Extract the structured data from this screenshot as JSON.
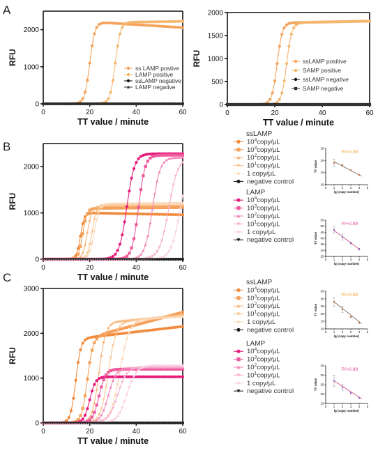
{
  "figure": {
    "panels": [
      {
        "id": "A",
        "label": "A"
      },
      {
        "id": "B",
        "label": "B"
      },
      {
        "id": "C",
        "label": "C"
      }
    ]
  },
  "chart_data": [
    {
      "id": "A-left",
      "type": "line",
      "xlabel": "TT value / minute",
      "ylabel": "RFU",
      "xlim": [
        0,
        60
      ],
      "ylim": [
        0,
        2500
      ],
      "xticks": [
        0,
        20,
        40,
        60
      ],
      "yticks": [
        0,
        1000,
        2000
      ],
      "legend_position": "right",
      "series": [
        {
          "name": "ss LAMP postive",
          "color": "#f4a259",
          "marker": "circle",
          "plateau": 2200,
          "ct": 20,
          "k": 0.9,
          "drift": -4
        },
        {
          "name": "LAMP positive",
          "color": "#f5b66d",
          "marker": "circle",
          "plateau": 2200,
          "ct": 31,
          "k": 0.9,
          "drift": 1
        },
        {
          "name": "ssLAMP negative",
          "color": "#111111",
          "marker": "circle",
          "plateau": 0,
          "ct": 100,
          "k": 1,
          "drift": 0
        },
        {
          "name": "LAMP negative",
          "color": "#333333",
          "marker": "triangle",
          "plateau": 0,
          "ct": 100,
          "k": 1,
          "drift": 0
        }
      ]
    },
    {
      "id": "A-right",
      "type": "line",
      "xlabel": "TT value / minute",
      "ylabel": "RFU",
      "xlim": [
        0,
        60
      ],
      "ylim": [
        0,
        2000
      ],
      "xticks": [
        0,
        20,
        40,
        60
      ],
      "yticks": [
        0,
        500,
        1000,
        1500,
        2000
      ],
      "legend_position": "right",
      "series": [
        {
          "name": "ssLAMP positive",
          "color": "#f4a259",
          "marker": "circle",
          "plateau": 1780,
          "ct": 21,
          "k": 0.9,
          "drift": 1
        },
        {
          "name": "SAMP positive",
          "color": "#f5b66d",
          "marker": "circle",
          "plateau": 1780,
          "ct": 25,
          "k": 0.9,
          "drift": 1
        },
        {
          "name": "ssLAMP negative",
          "color": "#111111",
          "marker": "circle",
          "plateau": 0,
          "ct": 100,
          "k": 1,
          "drift": 0
        },
        {
          "name": "SAMP negative",
          "color": "#333333",
          "marker": "square",
          "plateau": 0,
          "ct": 100,
          "k": 1,
          "drift": 0
        }
      ]
    },
    {
      "id": "B-main",
      "type": "line",
      "xlabel": "TT value / minute",
      "ylabel": "RFU",
      "xlim": [
        0,
        60
      ],
      "ylim": [
        0,
        2500
      ],
      "xticks": [
        0,
        20,
        40,
        60
      ],
      "yticks": [
        0,
        1000,
        2000
      ],
      "series": [
        {
          "name": "ssLAMP 10^4copy/μL",
          "color": "#f08a3c",
          "marker": "circle",
          "plateau": 1000,
          "ct": 16,
          "k": 1.2,
          "drift": -1
        },
        {
          "name": "ssLAMP 10^3copy/μL",
          "color": "#f5a05a",
          "marker": "square",
          "plateau": 1100,
          "ct": 17,
          "k": 1.1,
          "drift": 0.5
        },
        {
          "name": "ssLAMP 10^2copy/μL",
          "color": "#f7b377",
          "marker": "triangle",
          "plateau": 1150,
          "ct": 19,
          "k": 1.0,
          "drift": 0.5
        },
        {
          "name": "ssLAMP 10^1copy/μL",
          "color": "#f9c694",
          "marker": "tri-down",
          "plateau": 1180,
          "ct": 21,
          "k": 1.0,
          "drift": 0.5
        },
        {
          "name": "ssLAMP 1 copy/μL",
          "color": "#fbd9b8",
          "marker": "diamond",
          "plateau": 1200,
          "ct": 22,
          "k": 0.9,
          "drift": 0.5
        },
        {
          "name": "ssLAMP negative control",
          "color": "#222222",
          "marker": "circle",
          "plateau": 0,
          "ct": 100,
          "k": 1,
          "drift": 0
        },
        {
          "name": "LAMP 10^4copy/μL",
          "color": "#e6197a",
          "marker": "circle",
          "plateau": 2280,
          "ct": 36,
          "k": 0.6,
          "drift": 0
        },
        {
          "name": "LAMP 10^3copy/μL",
          "color": "#ee5a9d",
          "marker": "square",
          "plateau": 2250,
          "ct": 41,
          "k": 0.7,
          "drift": 0
        },
        {
          "name": "LAMP 10^2copy/μL",
          "color": "#f285b6",
          "marker": "triangle",
          "plateau": 2200,
          "ct": 47,
          "k": 0.6,
          "drift": 0
        },
        {
          "name": "LAMP 10^1copy/μL",
          "color": "#f6b0cf",
          "marker": "tri-down",
          "plateau": 2200,
          "ct": 54,
          "k": 0.5,
          "drift": 0
        },
        {
          "name": "LAMP 1 copy/μL",
          "color": "#fad0e2",
          "marker": "diamond",
          "plateau": 2200,
          "ct": 59,
          "k": 0.5,
          "drift": 0
        },
        {
          "name": "LAMP negative control",
          "color": "#222222",
          "marker": "tri-down",
          "plateau": 0,
          "ct": 100,
          "k": 1,
          "drift": 0
        }
      ]
    },
    {
      "id": "B-inset-ssLAMP",
      "type": "line",
      "xlabel": "lg (copy number)",
      "ylabel": "TT value",
      "annotation": "R²=0.99",
      "annotation_color": "#f0a030",
      "xlim": [
        0,
        5
      ],
      "ylim": [
        10,
        25
      ],
      "xticks": [
        0,
        1,
        2,
        3,
        4,
        5
      ],
      "yticks": [
        10,
        15,
        20,
        25
      ],
      "points": [
        {
          "x": 1,
          "y": 19,
          "err": 1.5
        },
        {
          "x": 2,
          "y": 18,
          "err": 0.4
        },
        {
          "x": 3,
          "y": 16,
          "err": 0
        },
        {
          "x": 4,
          "y": 14,
          "err": 0
        }
      ],
      "point_color": "#c06030",
      "fit": {
        "x0": 1,
        "y0": 19.5,
        "x1": 4.3,
        "y1": 13.5,
        "color": "#8a7060"
      }
    },
    {
      "id": "B-inset-LAMP",
      "type": "line",
      "xlabel": "lg (copy number)",
      "ylabel": "TT value",
      "annotation": "R²=0.99",
      "annotation_color": "#e0409a",
      "xlim": [
        0,
        5
      ],
      "ylim": [
        25,
        55
      ],
      "xticks": [
        0,
        1,
        2,
        3,
        4,
        5
      ],
      "yticks": [
        25,
        30,
        35,
        40,
        45,
        50,
        55
      ],
      "points": [
        {
          "x": 1,
          "y": 47,
          "err": 2.5
        },
        {
          "x": 2,
          "y": 41,
          "err": 2.5
        },
        {
          "x": 3,
          "y": 36,
          "err": 1
        },
        {
          "x": 4,
          "y": 31,
          "err": 0.8
        }
      ],
      "point_color": "#9050c0",
      "fit": {
        "x0": 1,
        "y0": 46.5,
        "x1": 4,
        "y1": 31,
        "color": "#d05090"
      }
    },
    {
      "id": "C-main",
      "type": "line",
      "xlabel": "TT value / minute",
      "ylabel": "RFU",
      "xlim": [
        0,
        60
      ],
      "ylim": [
        0,
        3000
      ],
      "xticks": [
        0,
        20,
        40,
        60
      ],
      "yticks": [
        0,
        1000,
        2000,
        3000
      ],
      "series": [
        {
          "name": "ssLAMP 10^4copy/μL",
          "color": "#f08a3c",
          "marker": "circle",
          "plateau": 1900,
          "ct": 14,
          "k": 0.9,
          "drift": 6
        },
        {
          "name": "ssLAMP 10^3copy/μL",
          "color": "#f5a05a",
          "marker": "square",
          "plateau": 1950,
          "ct": 19,
          "k": 0.8,
          "drift": 14
        },
        {
          "name": "ssLAMP 10^2copy/μL",
          "color": "#f7b377",
          "marker": "triangle",
          "plateau": 2250,
          "ct": 24,
          "k": 0.7,
          "drift": 5
        },
        {
          "name": "ssLAMP 10^1copy/μL",
          "color": "#f9c694",
          "marker": "tri-down",
          "plateau": 2250,
          "ct": 28,
          "k": 0.6,
          "drift": 5
        },
        {
          "name": "ssLAMP 1 copy/μL",
          "color": "#fbd9b8",
          "marker": "diamond",
          "plateau": 2300,
          "ct": 33,
          "k": 0.5,
          "drift": 3
        },
        {
          "name": "ssLAMP negative control",
          "color": "#222222",
          "marker": "circle",
          "plateau": 0,
          "ct": 100,
          "k": 1,
          "drift": 0
        },
        {
          "name": "LAMP 10^4copy/μL",
          "color": "#e6197a",
          "marker": "circle",
          "plateau": 1030,
          "ct": 20,
          "k": 0.8,
          "drift": 0
        },
        {
          "name": "LAMP 10^3copy/μL",
          "color": "#ee5a9d",
          "marker": "square",
          "plateau": 1200,
          "ct": 24,
          "k": 0.7,
          "drift": 0
        },
        {
          "name": "LAMP 10^2copy/μL",
          "color": "#f285b6",
          "marker": "triangle",
          "plateau": 1230,
          "ct": 28,
          "k": 0.6,
          "drift": 0
        },
        {
          "name": "LAMP 10^1copy/μL",
          "color": "#f6b0cf",
          "marker": "tri-down",
          "plateau": 1250,
          "ct": 32,
          "k": 0.5,
          "drift": 0
        },
        {
          "name": "LAMP 1 copy/μL",
          "color": "#fad0e2",
          "marker": "diamond",
          "plateau": 1280,
          "ct": 36,
          "k": 0.5,
          "drift": 0
        },
        {
          "name": "LAMP negative control",
          "color": "#222222",
          "marker": "tri-down",
          "plateau": 0,
          "ct": 100,
          "k": 1,
          "drift": 0
        }
      ]
    },
    {
      "id": "C-inset-ssLAMP",
      "type": "line",
      "xlabel": "lg (copy number)",
      "ylabel": "TT value",
      "annotation": "R²=0.99",
      "annotation_color": "#f0a030",
      "xlim": [
        0,
        5
      ],
      "ylim": [
        10,
        35
      ],
      "xticks": [
        0,
        1,
        2,
        3,
        4,
        5
      ],
      "yticks": [
        10,
        15,
        20,
        25,
        30,
        35
      ],
      "points": [
        {
          "x": 1,
          "y": 28,
          "err": 3
        },
        {
          "x": 2,
          "y": 23,
          "err": 2
        },
        {
          "x": 3,
          "y": 18,
          "err": 0.5
        },
        {
          "x": 4,
          "y": 14,
          "err": 0.3
        }
      ],
      "point_color": "#c06030",
      "fit": {
        "x0": 1,
        "y0": 28,
        "x1": 4.3,
        "y1": 13.5,
        "color": "#8a7060"
      }
    },
    {
      "id": "C-inset-LAMP",
      "type": "line",
      "xlabel": "lg (copy number)",
      "ylabel": "TT value",
      "annotation": "R²=0.99",
      "annotation_color": "#e0409a",
      "xlim": [
        0,
        5
      ],
      "ylim": [
        15,
        35
      ],
      "xticks": [
        0,
        1,
        2,
        3,
        4,
        5
      ],
      "yticks": [
        15,
        20,
        25,
        30,
        35
      ],
      "points": [
        {
          "x": 1,
          "y": 27,
          "err": 3
        },
        {
          "x": 2,
          "y": 23.5,
          "err": 1.5
        },
        {
          "x": 3,
          "y": 20.5,
          "err": 0.5
        },
        {
          "x": 4,
          "y": 18,
          "err": 0.3
        }
      ],
      "point_color": "#9050c0",
      "fit": {
        "x0": 1,
        "y0": 27,
        "x1": 4.3,
        "y1": 17.5,
        "color": "#d05090"
      }
    }
  ],
  "legends": {
    "B": {
      "groups": [
        {
          "title": "ssLAMP",
          "items": [
            {
              "base": "10",
              "exp": "4",
              "unit": "copy/μL",
              "color": "#f08a3c",
              "marker": "circle"
            },
            {
              "base": "10",
              "exp": "3",
              "unit": "copy/μL",
              "color": "#f5a05a",
              "marker": "square"
            },
            {
              "base": "10",
              "exp": "2",
              "unit": "copy/μL",
              "color": "#f7b377",
              "marker": "triangle"
            },
            {
              "base": "10",
              "exp": "1",
              "unit": "copy/μL",
              "color": "#f9c694",
              "marker": "tri-down"
            },
            {
              "base": "1 copy/μL",
              "exp": "",
              "unit": "",
              "color": "#fbd9b8",
              "marker": "diamond"
            },
            {
              "base": "negative control",
              "exp": "",
              "unit": "",
              "color": "#222222",
              "marker": "circle"
            }
          ]
        },
        {
          "title": "LAMP",
          "items": [
            {
              "base": "10",
              "exp": "4",
              "unit": "copy/μL",
              "color": "#e6197a",
              "marker": "circle"
            },
            {
              "base": "10",
              "exp": "3",
              "unit": "copy/μL",
              "color": "#ee5a9d",
              "marker": "square"
            },
            {
              "base": "10",
              "exp": "2",
              "unit": "copy/μL",
              "color": "#f285b6",
              "marker": "triangle"
            },
            {
              "base": "10",
              "exp": "1",
              "unit": "copy/μL",
              "color": "#f6b0cf",
              "marker": "tri-down"
            },
            {
              "base": "1 copy/μL",
              "exp": "",
              "unit": "",
              "color": "#fad0e2",
              "marker": "diamond"
            },
            {
              "base": "negative control",
              "exp": "",
              "unit": "",
              "color": "#222222",
              "marker": "tri-down"
            }
          ]
        }
      ]
    },
    "C": {
      "groups": [
        {
          "title": "ssLAMP",
          "items": [
            {
              "base": "10",
              "exp": "4",
              "unit": "copy/μL",
              "color": "#f08a3c",
              "marker": "circle"
            },
            {
              "base": "10",
              "exp": "3",
              "unit": "copy/μL",
              "color": "#f5a05a",
              "marker": "square"
            },
            {
              "base": "10",
              "exp": "2",
              "unit": "copy/μL",
              "color": "#f7b377",
              "marker": "triangle"
            },
            {
              "base": "10",
              "exp": "1",
              "unit": "copy/μL",
              "color": "#f9c694",
              "marker": "tri-down"
            },
            {
              "base": "1 copy/μL",
              "exp": "",
              "unit": "",
              "color": "#fbd9b8",
              "marker": "diamond"
            },
            {
              "base": "negative control",
              "exp": "",
              "unit": "",
              "color": "#222222",
              "marker": "circle"
            }
          ]
        },
        {
          "title": "LAMP",
          "items": [
            {
              "base": "10",
              "exp": "4",
              "unit": "copy/μL",
              "color": "#e6197a",
              "marker": "circle"
            },
            {
              "base": "10",
              "exp": "3",
              "unit": "copy/μL",
              "color": "#ee5a9d",
              "marker": "square"
            },
            {
              "base": "10",
              "exp": "2",
              "unit": "copy/μL",
              "color": "#f285b6",
              "marker": "triangle"
            },
            {
              "base": "10",
              "exp": "1",
              "unit": "copy/μL",
              "color": "#f6b0cf",
              "marker": "tri-down"
            },
            {
              "base": "1 copy/μL",
              "exp": "",
              "unit": "",
              "color": "#fad0e2",
              "marker": "diamond"
            },
            {
              "base": "negative control",
              "exp": "",
              "unit": "",
              "color": "#222222",
              "marker": "tri-down"
            }
          ]
        }
      ]
    }
  }
}
